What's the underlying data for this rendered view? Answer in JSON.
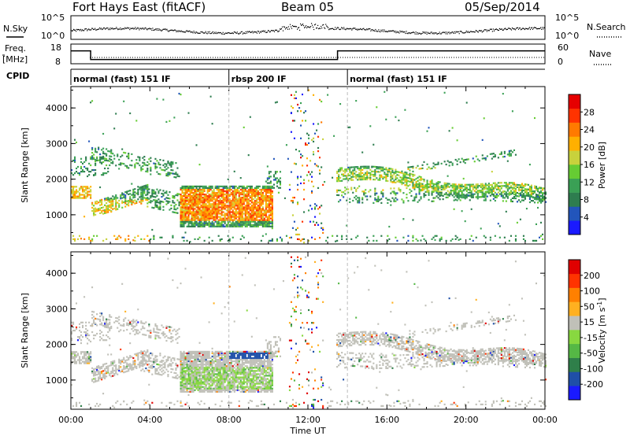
{
  "header": {
    "radar": "Fort Hays East (fitACF)",
    "beam": "Beam 05",
    "date": "05/Sep/2014"
  },
  "top_panels": {
    "nsky_label": "N.Sky",
    "nsearch_label": "N.Search",
    "nsky_ticks": [
      "10^5",
      "10^0"
    ],
    "freq_label_1": "Freq.",
    "freq_label_2": "[MHz]",
    "freq_ticks": [
      "18",
      "8"
    ],
    "nave_label": "Nave",
    "nave_ticks": [
      "60",
      "0"
    ],
    "cpid_label": "CPID"
  },
  "cpid_segments": [
    {
      "label": "normal (fast) 151 IF",
      "start_h": 0,
      "end_h": 8
    },
    {
      "label": "rbsp 200 IF",
      "start_h": 8,
      "end_h": 14
    },
    {
      "label": "normal (fast) 151 IF",
      "start_h": 14,
      "end_h": 24
    }
  ],
  "colors": {
    "power": [
      "#1a1aff",
      "#2255bb",
      "#2e7d4f",
      "#3aa055",
      "#66cc33",
      "#c8d23c",
      "#ffb000",
      "#ff7a00",
      "#ff3300",
      "#e60000"
    ],
    "velocity": [
      "#1a1aff",
      "#1f4fa8",
      "#2f7f4a",
      "#55b845",
      "#88d840",
      "#c0c0b8",
      "#ffb020",
      "#ff8000",
      "#ff3300",
      "#e00000"
    ]
  },
  "chart_data": [
    {
      "type": "heatmap",
      "name": "power",
      "xlabel": "",
      "ylabel": "Slant Range [km]",
      "x_range_hours": [
        0,
        24
      ],
      "ylim": [
        180,
        4600
      ],
      "y_ticks": [
        "4000",
        "3000",
        "2000",
        "1000"
      ],
      "colorbar_label": "Power [dB]",
      "colorbar_ticks": [
        "28",
        "24",
        "20",
        "16",
        "12",
        "8",
        "4"
      ],
      "colorbar_range": [
        0,
        32
      ]
    },
    {
      "type": "heatmap",
      "name": "velocity",
      "xlabel": "Time UT",
      "ylabel": "Slant Range [km]",
      "x_range_hours": [
        0,
        24
      ],
      "x_ticks": [
        "00:00",
        "04:00",
        "08:00",
        "12:00",
        "16:00",
        "20:00",
        "00:00"
      ],
      "ylim": [
        180,
        4600
      ],
      "y_ticks": [
        "4000",
        "3000",
        "2000",
        "1000"
      ],
      "colorbar_label": "Velocity [m s",
      "colorbar_label_sup": "-1",
      "colorbar_label_end": "]",
      "colorbar_ticks": [
        "200",
        "100",
        "50",
        "15",
        "-15",
        "-50",
        "-100",
        "-200"
      ]
    },
    {
      "type": "line",
      "name": "transmit frequency",
      "ylim": [
        8,
        18
      ],
      "x_hours": [
        0,
        1,
        1,
        13.5,
        13.5,
        24
      ],
      "y_mhz": [
        15,
        15,
        10,
        10,
        15,
        15
      ]
    }
  ]
}
